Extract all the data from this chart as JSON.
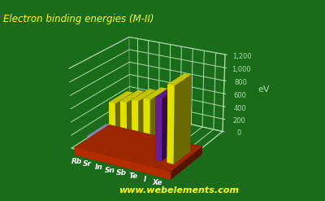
{
  "title": "Electron binding energies (M-II)",
  "ylabel": "eV",
  "watermark": "www.webelements.com",
  "categories": [
    "Rb",
    "Sr",
    "In",
    "Sn",
    "Sb",
    "Te",
    "I",
    "Xe"
  ],
  "values": [
    112,
    135,
    703,
    757,
    812,
    870,
    931,
    1149
  ],
  "bar_colors": [
    "#aaaadd",
    "#aaaadd",
    "#ffff00",
    "#ffff00",
    "#ffff00",
    "#ffff00",
    "#7722aa",
    "#ffff00"
  ],
  "bar_dark_colors": [
    "#7777aa",
    "#7777aa",
    "#aaaa00",
    "#aaaa00",
    "#aaaa00",
    "#aaaa00",
    "#441166",
    "#aaaa00"
  ],
  "background_color": "#1a6b1a",
  "ylim": [
    0,
    1200
  ],
  "yticks": [
    0,
    200,
    400,
    600,
    800,
    1000,
    1200
  ],
  "title_color": "#ffff00",
  "axis_color": "#aaddaa",
  "base_color": "#cc3300",
  "base_dark_color": "#882200",
  "grid_color": "#aaddaa",
  "watermark_color": "#ffff00",
  "elev": 22,
  "azim": -60
}
